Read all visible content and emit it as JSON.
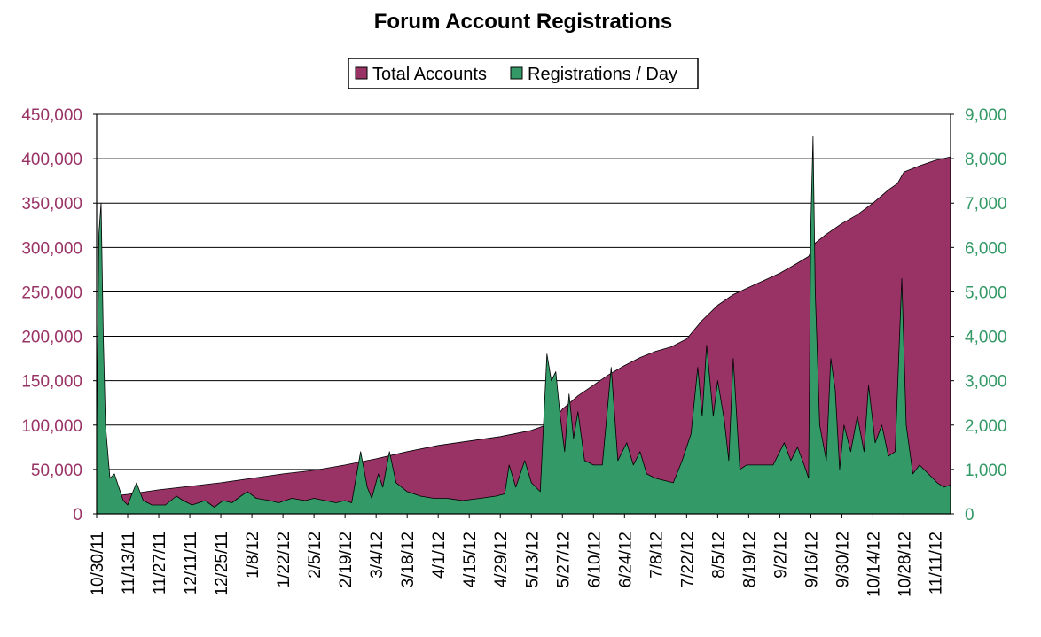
{
  "chart_data": {
    "type": "area",
    "title": "Forum Account Registrations",
    "legend": {
      "position": "top-center",
      "entries": [
        {
          "label": "Total Accounts",
          "color": "#993366"
        },
        {
          "label": "Registrations / Day",
          "color": "#339966"
        }
      ]
    },
    "x_tick_labels": [
      "10/30/11",
      "11/13/11",
      "11/27/11",
      "12/11/11",
      "12/25/11",
      "1/8/12",
      "1/22/12",
      "2/5/12",
      "2/19/12",
      "3/4/12",
      "3/18/12",
      "4/1/12",
      "4/15/12",
      "4/29/12",
      "5/13/12",
      "5/27/12",
      "6/10/12",
      "6/24/12",
      "7/8/12",
      "7/22/12",
      "8/5/12",
      "8/19/12",
      "9/2/12",
      "9/16/12",
      "9/30/12",
      "10/14/12",
      "10/28/12",
      "11/11/12"
    ],
    "x_range": [
      "10/30/11",
      "11/18/12"
    ],
    "y_left": {
      "min": 0,
      "max": 450000,
      "step": 50000,
      "tick_labels": [
        "0",
        "50,000",
        "100,000",
        "150,000",
        "200,000",
        "250,000",
        "300,000",
        "350,000",
        "400,000",
        "450,000"
      ]
    },
    "y_right": {
      "min": 0,
      "max": 9000,
      "step": 1000,
      "tick_labels": [
        "0",
        "1,000",
        "2,000",
        "3,000",
        "4,000",
        "5,000",
        "6,000",
        "7,000",
        "8,000",
        "9,000"
      ]
    },
    "grid": "horizontal",
    "series": [
      {
        "name": "Total Accounts",
        "axis": "left",
        "color": "#993366",
        "points": [
          [
            "10/30/11",
            0
          ],
          [
            "10/31/11",
            5000
          ],
          [
            "11/1/11",
            10000
          ],
          [
            "11/3/11",
            16000
          ],
          [
            "11/6/11",
            20000
          ],
          [
            "11/13/11",
            22000
          ],
          [
            "11/27/11",
            27000
          ],
          [
            "12/11/11",
            31000
          ],
          [
            "12/25/11",
            35000
          ],
          [
            "1/8/12",
            40000
          ],
          [
            "1/22/12",
            45000
          ],
          [
            "2/5/12",
            49000
          ],
          [
            "2/19/12",
            55000
          ],
          [
            "3/4/12",
            62000
          ],
          [
            "3/18/12",
            70000
          ],
          [
            "4/1/12",
            77000
          ],
          [
            "4/15/12",
            82000
          ],
          [
            "4/29/12",
            87000
          ],
          [
            "5/13/12",
            94000
          ],
          [
            "5/22/12",
            102000
          ],
          [
            "5/27/12",
            118000
          ],
          [
            "6/3/12",
            133000
          ],
          [
            "6/10/12",
            145000
          ],
          [
            "6/17/12",
            157000
          ],
          [
            "6/24/12",
            167000
          ],
          [
            "7/1/12",
            176000
          ],
          [
            "7/8/12",
            183000
          ],
          [
            "7/15/12",
            188000
          ],
          [
            "7/22/12",
            197000
          ],
          [
            "7/29/12",
            218000
          ],
          [
            "8/5/12",
            235000
          ],
          [
            "8/12/12",
            247000
          ],
          [
            "8/19/12",
            255000
          ],
          [
            "8/26/12",
            263000
          ],
          [
            "9/2/12",
            271000
          ],
          [
            "9/9/12",
            281000
          ],
          [
            "9/15/12",
            290000
          ],
          [
            "9/18/12",
            305000
          ],
          [
            "9/23/12",
            315000
          ],
          [
            "9/30/12",
            327000
          ],
          [
            "10/7/12",
            337000
          ],
          [
            "10/14/12",
            350000
          ],
          [
            "10/21/12",
            365000
          ],
          [
            "10/25/12",
            372000
          ],
          [
            "10/28/12",
            385000
          ],
          [
            "11/4/12",
            392000
          ],
          [
            "11/11/12",
            398000
          ],
          [
            "11/18/12",
            402000
          ]
        ]
      },
      {
        "name": "Registrations / Day",
        "axis": "right",
        "color": "#339966",
        "points": [
          [
            "10/30/11",
            1700
          ],
          [
            "10/31/11",
            6300
          ],
          [
            "11/1/11",
            7000
          ],
          [
            "11/2/11",
            4000
          ],
          [
            "11/3/11",
            2000
          ],
          [
            "11/5/11",
            800
          ],
          [
            "11/7/11",
            900
          ],
          [
            "11/9/11",
            600
          ],
          [
            "11/11/11",
            300
          ],
          [
            "11/13/11",
            200
          ],
          [
            "11/17/11",
            700
          ],
          [
            "11/20/11",
            300
          ],
          [
            "11/24/11",
            200
          ],
          [
            "11/30/11",
            200
          ],
          [
            "12/5/11",
            400
          ],
          [
            "12/8/11",
            300
          ],
          [
            "12/12/11",
            200
          ],
          [
            "12/18/11",
            300
          ],
          [
            "12/22/11",
            150
          ],
          [
            "12/26/11",
            300
          ],
          [
            "12/30/11",
            250
          ],
          [
            "1/3/12",
            400
          ],
          [
            "1/6/12",
            500
          ],
          [
            "1/10/12",
            350
          ],
          [
            "1/16/12",
            300
          ],
          [
            "1/20/12",
            250
          ],
          [
            "1/26/12",
            350
          ],
          [
            "2/1/12",
            300
          ],
          [
            "2/5/12",
            350
          ],
          [
            "2/10/12",
            300
          ],
          [
            "2/15/12",
            250
          ],
          [
            "2/19/12",
            300
          ],
          [
            "2/22/12",
            250
          ],
          [
            "2/26/12",
            1400
          ],
          [
            "2/29/12",
            600
          ],
          [
            "3/2/12",
            350
          ],
          [
            "3/5/12",
            900
          ],
          [
            "3/7/12",
            600
          ],
          [
            "3/10/12",
            1400
          ],
          [
            "3/13/12",
            700
          ],
          [
            "3/18/12",
            500
          ],
          [
            "3/24/12",
            400
          ],
          [
            "3/30/12",
            350
          ],
          [
            "4/5/12",
            350
          ],
          [
            "4/12/12",
            300
          ],
          [
            "4/20/12",
            350
          ],
          [
            "4/27/12",
            400
          ],
          [
            "5/1/12",
            450
          ],
          [
            "5/3/12",
            1100
          ],
          [
            "5/6/12",
            600
          ],
          [
            "5/10/12",
            1200
          ],
          [
            "5/13/12",
            700
          ],
          [
            "5/17/12",
            500
          ],
          [
            "5/20/12",
            3600
          ],
          [
            "5/22/12",
            3000
          ],
          [
            "5/24/12",
            3200
          ],
          [
            "5/26/12",
            2200
          ],
          [
            "5/28/12",
            1400
          ],
          [
            "5/30/12",
            2700
          ],
          [
            "6/1/12",
            1700
          ],
          [
            "6/3/12",
            2300
          ],
          [
            "6/6/12",
            1200
          ],
          [
            "6/10/12",
            1100
          ],
          [
            "6/14/12",
            1100
          ],
          [
            "6/18/12",
            3300
          ],
          [
            "6/21/12",
            1200
          ],
          [
            "6/25/12",
            1600
          ],
          [
            "6/28/12",
            1100
          ],
          [
            "7/1/12",
            1400
          ],
          [
            "7/4/12",
            900
          ],
          [
            "7/8/12",
            800
          ],
          [
            "7/12/12",
            750
          ],
          [
            "7/16/12",
            700
          ],
          [
            "7/20/12",
            1200
          ],
          [
            "7/24/12",
            1800
          ],
          [
            "7/27/12",
            3300
          ],
          [
            "7/29/12",
            2200
          ],
          [
            "7/31/12",
            3800
          ],
          [
            "8/3/12",
            2200
          ],
          [
            "8/5/12",
            3000
          ],
          [
            "8/8/12",
            2100
          ],
          [
            "8/10/12",
            1200
          ],
          [
            "8/12/12",
            3500
          ],
          [
            "8/15/12",
            1000
          ],
          [
            "8/18/12",
            1100
          ],
          [
            "8/22/12",
            1100
          ],
          [
            "8/26/12",
            1100
          ],
          [
            "8/30/12",
            1100
          ],
          [
            "9/4/12",
            1600
          ],
          [
            "9/7/12",
            1200
          ],
          [
            "9/10/12",
            1500
          ],
          [
            "9/13/12",
            1100
          ],
          [
            "9/15/12",
            800
          ],
          [
            "9/16/12",
            6500
          ],
          [
            "9/17/12",
            8500
          ],
          [
            "9/18/12",
            5000
          ],
          [
            "9/20/12",
            2000
          ],
          [
            "9/23/12",
            1200
          ],
          [
            "9/25/12",
            3500
          ],
          [
            "9/27/12",
            2800
          ],
          [
            "9/29/12",
            1000
          ],
          [
            "10/1/12",
            2000
          ],
          [
            "10/4/12",
            1400
          ],
          [
            "10/7/12",
            2200
          ],
          [
            "10/10/12",
            1400
          ],
          [
            "10/12/12",
            2900
          ],
          [
            "10/15/12",
            1600
          ],
          [
            "10/18/12",
            2000
          ],
          [
            "10/21/12",
            1300
          ],
          [
            "10/24/12",
            1400
          ],
          [
            "10/27/12",
            5300
          ],
          [
            "10/29/12",
            2000
          ],
          [
            "11/1/12",
            900
          ],
          [
            "11/4/12",
            1100
          ],
          [
            "11/8/12",
            900
          ],
          [
            "11/12/12",
            700
          ],
          [
            "11/15/12",
            600
          ],
          [
            "11/18/12",
            650
          ]
        ]
      }
    ]
  }
}
